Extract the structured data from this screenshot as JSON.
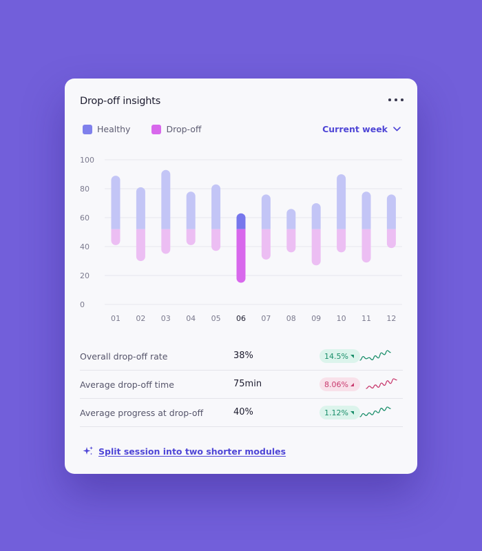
{
  "card": {
    "title": "Drop-off insights",
    "period_label": "Current week",
    "cta_label": "Split session into two shorter modules"
  },
  "colors": {
    "background": "#725fda",
    "healthy": "#c3c5f6",
    "dropoff": "#ecbef3",
    "healthy_active": "#7777ec",
    "dropoff_active": "#d868ec",
    "accent": "#4f46d6",
    "up": "#1a8e6a",
    "down": "#c83a6e"
  },
  "chart_data": {
    "type": "bar",
    "categories": [
      "01",
      "02",
      "03",
      "04",
      "05",
      "06",
      "07",
      "08",
      "09",
      "10",
      "11",
      "12"
    ],
    "series": [
      {
        "name": "Healthy",
        "low": [
          52,
          52,
          52,
          52,
          52,
          52,
          52,
          52,
          52,
          52,
          52,
          52
        ],
        "high": [
          89,
          81,
          93,
          78,
          83,
          63,
          76,
          66,
          70,
          90,
          78,
          76
        ]
      },
      {
        "name": "Drop-off",
        "low": [
          41,
          30,
          35,
          41,
          37,
          15,
          31,
          36,
          27,
          36,
          29,
          39
        ],
        "high": [
          52,
          52,
          52,
          52,
          52,
          52,
          52,
          52,
          52,
          52,
          52,
          52
        ]
      }
    ],
    "highlight_index": 5,
    "ylim": [
      0,
      100
    ],
    "yticks": [
      "0",
      "20",
      "40",
      "60",
      "80",
      "100"
    ],
    "legend": "top-left",
    "grid": true
  },
  "metrics": [
    {
      "label": "Overall drop-off rate",
      "value": "38%",
      "change": "14.5%",
      "trend": "up",
      "spark": [
        2,
        3,
        2.4,
        2.7,
        2.1,
        3.2,
        2.6,
        4,
        3.5,
        4.6,
        4.1
      ]
    },
    {
      "label": "Average drop-off time",
      "value": "75min",
      "change": "8.06%",
      "trend": "down",
      "spark": [
        2,
        2.6,
        2.1,
        2.9,
        2.3,
        3.4,
        2.8,
        4,
        3.3,
        4.5,
        4.2
      ]
    },
    {
      "label": "Average progress at drop-off",
      "value": "40%",
      "change": "1.12%",
      "trend": "up",
      "spark": [
        2,
        2.8,
        2.3,
        3,
        2.5,
        3.5,
        3,
        4.2,
        3.6,
        4.5,
        4.1
      ]
    }
  ]
}
